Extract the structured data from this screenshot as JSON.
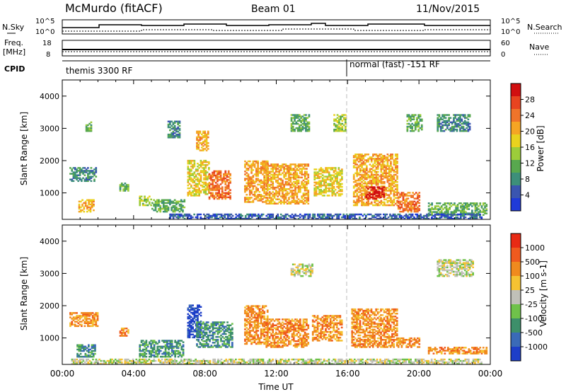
{
  "header": {
    "station": "McMurdo (fitACF)",
    "beam": "Beam 01",
    "date": "11/Nov/2015"
  },
  "top_panels": {
    "nsky_label": "N.Sky",
    "nsky_ticks": [
      "10^5",
      "10^0"
    ],
    "nsearch_label": "N.Search",
    "nsearch_ticks": [
      "10^5",
      "10^0"
    ],
    "freq_label": "Freq.",
    "freq_unit": "[MHz]",
    "freq_ticks": [
      "18",
      "8"
    ],
    "nave_label": "Nave",
    "nave_ticks": [
      "60",
      "0"
    ],
    "cpid_label": "CPID",
    "cpid_modes": [
      {
        "label": "themis 3300 RF"
      },
      {
        "label": "normal (fast) -151 RF"
      }
    ],
    "mode_change_time": "16:00"
  },
  "chart_data": [
    {
      "type": "heatmap",
      "title": "Power",
      "ylabel": "Slant Range [km]",
      "xlabel": "",
      "ylim": [
        180,
        4500
      ],
      "xlim": [
        "00:00",
        "24:00"
      ],
      "y_ticks": [
        "1000",
        "2000",
        "3000",
        "4000"
      ],
      "colorbar": {
        "label": "Power [dB]",
        "ticks": [
          "4",
          "8",
          "12",
          "16",
          "20",
          "24",
          "28"
        ],
        "colors": [
          "#1f3ad8",
          "#3a55b0",
          "#3d8f7a",
          "#58a84e",
          "#9ccc3a",
          "#e9d21e",
          "#f5a524",
          "#f0742a",
          "#e84420",
          "#d10f10"
        ]
      },
      "regions": [
        {
          "t": [
            0.4,
            1.9
          ],
          "r": [
            1350,
            1800
          ],
          "level": 2
        },
        {
          "t": [
            0.9,
            1.8
          ],
          "r": [
            400,
            800
          ],
          "level": 6
        },
        {
          "t": [
            1.3,
            1.6
          ],
          "r": [
            2900,
            3200
          ],
          "level": 3
        },
        {
          "t": [
            3.2,
            3.7
          ],
          "r": [
            1050,
            1300
          ],
          "level": 3
        },
        {
          "t": [
            4.3,
            5.0
          ],
          "r": [
            600,
            900
          ],
          "level": 4
        },
        {
          "t": [
            5.0,
            6.8
          ],
          "r": [
            400,
            800
          ],
          "level": 3
        },
        {
          "t": [
            5.9,
            6.6
          ],
          "r": [
            2700,
            3200
          ],
          "level": 2
        },
        {
          "t": [
            7.0,
            8.2
          ],
          "r": [
            900,
            2000
          ],
          "level": 5
        },
        {
          "t": [
            7.5,
            8.2
          ],
          "r": [
            2300,
            2900
          ],
          "level": 6
        },
        {
          "t": [
            8.2,
            9.4
          ],
          "r": [
            800,
            1700
          ],
          "level": 7
        },
        {
          "t": [
            10.2,
            11.5
          ],
          "r": [
            700,
            2000
          ],
          "level": 6
        },
        {
          "t": [
            11.4,
            13.8
          ],
          "r": [
            650,
            1900
          ],
          "level": 6
        },
        {
          "t": [
            12.8,
            13.8
          ],
          "r": [
            2900,
            3400
          ],
          "level": 3
        },
        {
          "t": [
            14.1,
            15.7
          ],
          "r": [
            900,
            1800
          ],
          "level": 5
        },
        {
          "t": [
            15.2,
            15.9
          ],
          "r": [
            2900,
            3400
          ],
          "level": 4
        },
        {
          "t": [
            16.3,
            18.8
          ],
          "r": [
            600,
            2200
          ],
          "level": 6
        },
        {
          "t": [
            17.0,
            18.0
          ],
          "r": [
            800,
            1200
          ],
          "level": 9
        },
        {
          "t": [
            18.8,
            20.0
          ],
          "r": [
            400,
            1000
          ],
          "level": 7
        },
        {
          "t": [
            19.3,
            20.2
          ],
          "r": [
            2900,
            3400
          ],
          "level": 3
        },
        {
          "t": [
            20.5,
            23.8
          ],
          "r": [
            300,
            700
          ],
          "level": 3
        },
        {
          "t": [
            21.0,
            22.8
          ],
          "r": [
            2900,
            3400
          ],
          "level": 2
        },
        {
          "t": [
            6.0,
            23.5
          ],
          "r": [
            180,
            350
          ],
          "level": 1
        }
      ]
    },
    {
      "type": "heatmap",
      "title": "Velocity",
      "ylabel": "Slant Range [km]",
      "xlabel": "Time UT",
      "ylim": [
        180,
        4500
      ],
      "xlim": [
        "00:00",
        "24:00"
      ],
      "y_ticks": [
        "1000",
        "2000",
        "3000",
        "4000"
      ],
      "x_ticks": [
        "00:00",
        "04:00",
        "08:00",
        "12:00",
        "16:00",
        "20:00",
        "00:00"
      ],
      "colorbar": {
        "label": "Velocity [m s⁻¹]",
        "unit_html": "Velocity [m s-1]",
        "ticks": [
          "1000",
          "500",
          "100",
          "25",
          "-25",
          "-100",
          "-500",
          "-1000"
        ],
        "colors": [
          "#1d3ec8",
          "#3a6ab8",
          "#3d8f6a",
          "#6fc24a",
          "#c0c0b8",
          "#f5c232",
          "#f08a1e",
          "#f05a1e",
          "#e82a14"
        ]
      },
      "regions": [
        {
          "t": [
            0.4,
            2.0
          ],
          "r": [
            1350,
            1800
          ],
          "level": 6
        },
        {
          "t": [
            0.8,
            1.8
          ],
          "r": [
            400,
            800
          ],
          "level": 2
        },
        {
          "t": [
            3.2,
            3.7
          ],
          "r": [
            1050,
            1300
          ],
          "level": 6
        },
        {
          "t": [
            4.3,
            6.8
          ],
          "r": [
            400,
            900
          ],
          "level": 2
        },
        {
          "t": [
            7.0,
            7.8
          ],
          "r": [
            1000,
            2000
          ],
          "level": 0
        },
        {
          "t": [
            7.5,
            9.5
          ],
          "r": [
            700,
            1500
          ],
          "level": 2
        },
        {
          "t": [
            10.2,
            11.5
          ],
          "r": [
            800,
            2000
          ],
          "level": 6
        },
        {
          "t": [
            11.4,
            13.8
          ],
          "r": [
            700,
            1600
          ],
          "level": 6
        },
        {
          "t": [
            14.0,
            15.7
          ],
          "r": [
            900,
            1700
          ],
          "level": 6
        },
        {
          "t": [
            12.8,
            14.0
          ],
          "r": [
            2900,
            3300
          ],
          "level": 4
        },
        {
          "t": [
            16.2,
            18.8
          ],
          "r": [
            700,
            1900
          ],
          "level": 6
        },
        {
          "t": [
            18.8,
            20.0
          ],
          "r": [
            700,
            1000
          ],
          "level": 6
        },
        {
          "t": [
            20.5,
            23.8
          ],
          "r": [
            500,
            700
          ],
          "level": 6
        },
        {
          "t": [
            21.0,
            23.0
          ],
          "r": [
            2900,
            3400
          ],
          "level": 4
        },
        {
          "t": [
            0.5,
            23.5
          ],
          "r": [
            180,
            350
          ],
          "level": 4
        }
      ]
    }
  ]
}
